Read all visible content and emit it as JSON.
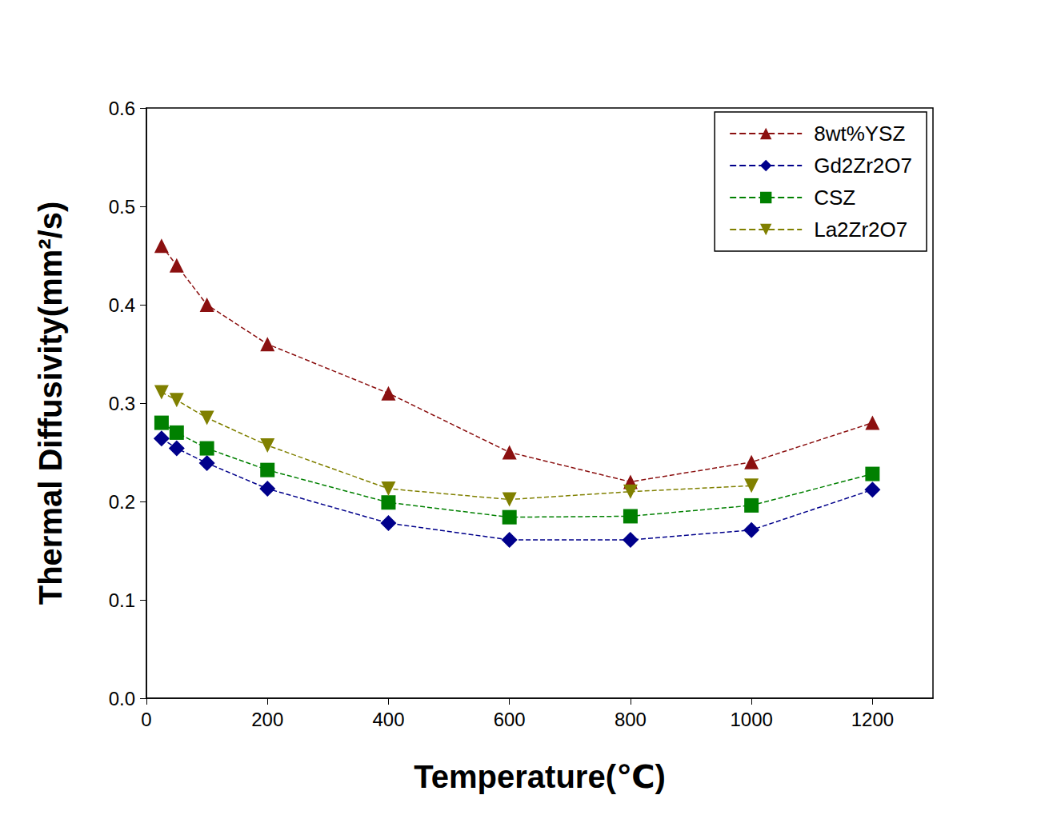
{
  "chart_data": {
    "type": "line",
    "x_label": "Temperature(℃)",
    "y_label": "Thermal Diffusivity(mm²/s)",
    "x": [
      25,
      50,
      100,
      200,
      400,
      600,
      800,
      1000,
      1200
    ],
    "series": [
      {
        "name": "8wt%YSZ",
        "color": "#8b1010",
        "marker": "triangle-up",
        "line_style": "dashed",
        "values": [
          0.46,
          0.44,
          0.4,
          0.36,
          0.31,
          0.25,
          0.22,
          0.24,
          0.28
        ]
      },
      {
        "name": "Gd2Zr2O7",
        "color": "#00008b",
        "marker": "diamond",
        "line_style": "dashed",
        "values": [
          0.264,
          0.254,
          0.239,
          0.213,
          0.178,
          0.161,
          0.161,
          0.171,
          0.212
        ]
      },
      {
        "name": "CSZ",
        "color": "#008000",
        "marker": "square",
        "line_style": "dashed",
        "values": [
          0.28,
          0.27,
          0.254,
          0.232,
          0.199,
          0.184,
          0.185,
          0.196,
          0.228
        ]
      },
      {
        "name": "La2Zr2O7",
        "color": "#808000",
        "marker": "triangle-down",
        "line_style": "dashed",
        "values": [
          0.311,
          0.303,
          0.285,
          0.257,
          0.213,
          0.202,
          0.21,
          0.216,
          null
        ]
      }
    ],
    "xlim": [
      0,
      1300
    ],
    "xticks": [
      0,
      200,
      400,
      600,
      800,
      1000,
      1200
    ],
    "ylim": [
      0,
      0.6
    ],
    "yticks": [
      {
        "value": 0,
        "label": "0.0"
      },
      0.1,
      0.2,
      0.3,
      0.4,
      0.5,
      0.6
    ],
    "legend": "upper right",
    "grid": false
  }
}
